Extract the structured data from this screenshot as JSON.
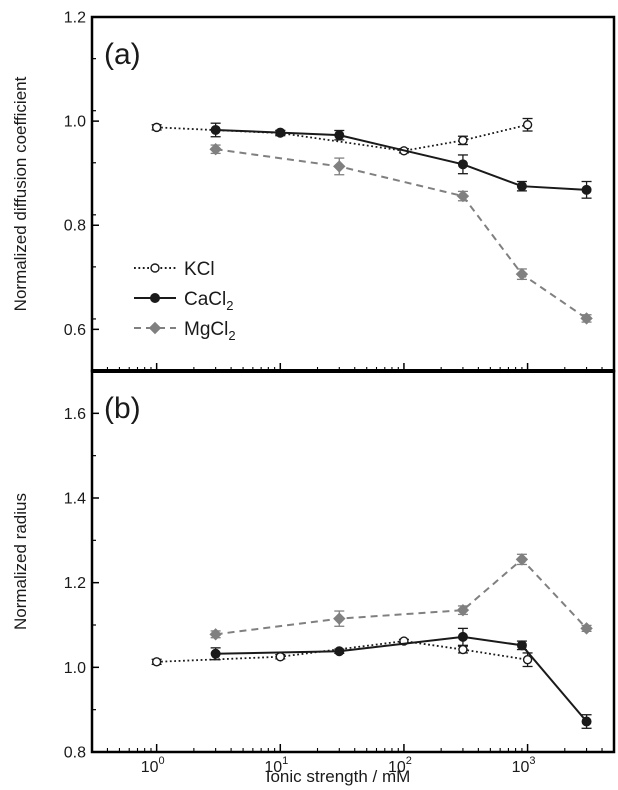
{
  "chart_data": {
    "type": "line",
    "x_scale": "log",
    "x_axis_label": "Ionic strength / mM",
    "x_range": [
      0.3,
      5000
    ],
    "x_ticks": [
      {
        "value": 1,
        "base": "10",
        "exp": "0"
      },
      {
        "value": 10,
        "base": "10",
        "exp": "1"
      },
      {
        "value": 100,
        "base": "10",
        "exp": "2"
      },
      {
        "value": 1000,
        "base": "10",
        "exp": "3"
      }
    ],
    "legend": [
      {
        "series": "KCl",
        "main": "KCl",
        "sub": ""
      },
      {
        "series": "CaCl2",
        "main": "CaCl",
        "sub": "2"
      },
      {
        "series": "MgCl2",
        "main": "MgCl",
        "sub": "2"
      }
    ],
    "legend_position": "lower-left of panel (a)",
    "styles": {
      "KCl": {
        "color": "#1a1a1a",
        "dash": "dotted",
        "marker": "open-circle"
      },
      "CaCl2": {
        "color": "#1a1a1a",
        "dash": "solid",
        "marker": "filled-circle"
      },
      "MgCl2": {
        "color": "#808080",
        "dash": "dashed",
        "marker": "diamond"
      }
    },
    "panels": [
      {
        "label": "(a)",
        "y_axis_label": "Normalized diffusion coefficient",
        "y_range": [
          0.52,
          1.2
        ],
        "y_ticks": [
          "0.6",
          "0.8",
          "1.0",
          "1.2"
        ],
        "series": [
          {
            "name": "KCl",
            "x": [
              1,
              10,
              100,
              300,
              1000
            ],
            "y": [
              0.988,
              0.977,
              0.943,
              0.963,
              0.993
            ],
            "err": [
              0.005,
              0.005,
              0.004,
              0.008,
              0.012
            ]
          },
          {
            "name": "CaCl2",
            "x": [
              3,
              10,
              30,
              300,
              900,
              3000
            ],
            "y": [
              0.983,
              0.978,
              0.973,
              0.917,
              0.875,
              0.868
            ],
            "err": [
              0.013,
              0.004,
              0.009,
              0.018,
              0.009,
              0.016
            ]
          },
          {
            "name": "MgCl2",
            "x": [
              3,
              30,
              300,
              900,
              3000
            ],
            "y": [
              0.946,
              0.913,
              0.856,
              0.706,
              0.621
            ],
            "err": [
              0.008,
              0.016,
              0.009,
              0.01,
              0.007
            ]
          }
        ]
      },
      {
        "label": "(b)",
        "y_axis_label": "Normalized radius",
        "y_range": [
          0.8,
          1.7
        ],
        "y_ticks": [
          "0.8",
          "1.0",
          "1.2",
          "1.4",
          "1.6"
        ],
        "series": [
          {
            "name": "KCl",
            "x": [
              1,
              10,
              100,
              300,
              1000
            ],
            "y": [
              1.013,
              1.025,
              1.062,
              1.042,
              1.018
            ],
            "err": [
              0.006,
              0.005,
              0.004,
              0.008,
              0.016
            ]
          },
          {
            "name": "CaCl2",
            "x": [
              3,
              30,
              300,
              900,
              3000
            ],
            "y": [
              1.032,
              1.038,
              1.072,
              1.052,
              0.872
            ],
            "err": [
              0.014,
              0.005,
              0.02,
              0.01,
              0.016
            ]
          },
          {
            "name": "MgCl2",
            "x": [
              3,
              30,
              300,
              900,
              3000
            ],
            "y": [
              1.078,
              1.115,
              1.135,
              1.255,
              1.092
            ],
            "err": [
              0.008,
              0.018,
              0.01,
              0.012,
              0.007
            ]
          }
        ]
      }
    ]
  }
}
